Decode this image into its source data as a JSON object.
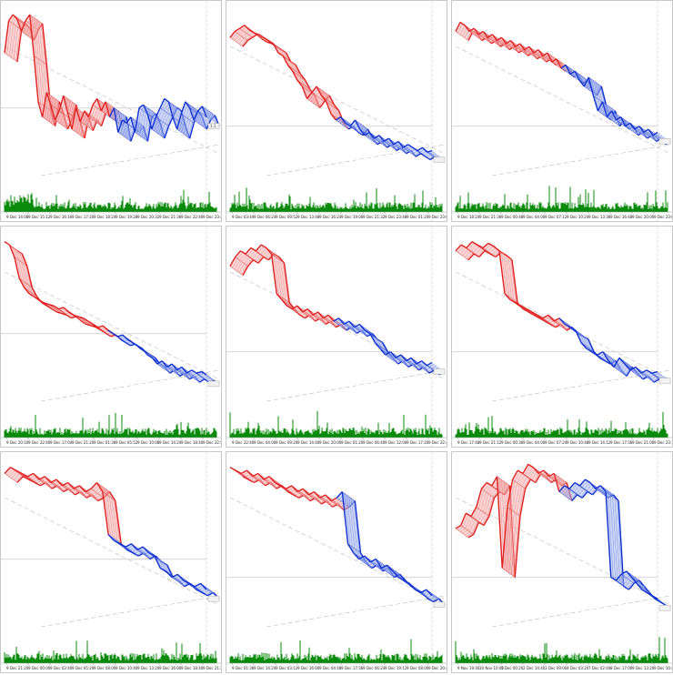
{
  "window": {
    "title": ""
  },
  "colors": {
    "bull": "#e02020",
    "bull_fill": "#f5b5b5",
    "bear": "#1030d0",
    "bear_fill": "#a8b8f0",
    "volume": "#0a8a0a",
    "grid": "#c8c8c8",
    "guide": "#bcbcbc"
  },
  "panels": [
    {
      "id": "p1",
      "price_tag": "1.1",
      "time_labels": [
        "9 Dec 14:08",
        "9 Dec 15:12",
        "9 Dec 16:16",
        "9 Dec 17:20",
        "9 Dec 18:24",
        "9 Dec 19:28",
        "9 Dec 20:32",
        "9 Dec 21:36",
        "9 Dec 22:40",
        "9 Dec 23:44"
      ],
      "chart_data": {
        "type": "line",
        "series": [
          {
            "values": [
              0.72,
              0.93,
              0.97,
              0.94,
              0.86,
              0.93,
              0.97,
              0.7,
              0.4,
              0.3,
              0.46,
              0.38,
              0.28,
              0.34,
              0.44,
              0.33,
              0.22,
              0.36,
              0.27,
              0.34,
              0.3,
              0.38,
              0.42,
              0.34,
              0.4,
              0.3,
              0.36,
              0.2,
              0.28,
              0.26,
              0.3,
              0.2,
              0.36,
              0.38,
              0.32,
              0.22,
              0.3,
              0.36,
              0.42,
              0.4,
              0.3,
              0.22,
              0.32,
              0.4,
              0.36,
              0.28,
              0.34,
              0.37,
              0.3
            ]
          }
        ]
      }
    },
    {
      "id": "p2",
      "price_tag": "",
      "time_labels": [
        "9 Dec 03:44",
        "9 Dec 06:24",
        "9 Dec 09:52",
        "9 Dec 13:48",
        "9 Dec 16:24",
        "9 Dec 19:06",
        "9 Dec 21:32",
        "9 Dec 23:48",
        "9 Dec 01:20",
        "9 Dec 23:09"
      ],
      "chart_data": {
        "type": "line",
        "series": [
          {
            "values": [
              0.82,
              0.86,
              0.88,
              0.9,
              0.87,
              0.85,
              0.84,
              0.82,
              0.8,
              0.78,
              0.72,
              0.7,
              0.64,
              0.6,
              0.54,
              0.5,
              0.42,
              0.46,
              0.5,
              0.44,
              0.4,
              0.32,
              0.28,
              0.3,
              0.26,
              0.24,
              0.28,
              0.22,
              0.18,
              0.2,
              0.16,
              0.18,
              0.14,
              0.16,
              0.12,
              0.14,
              0.1,
              0.12,
              0.1,
              0.08,
              0.1,
              0.07,
              0.08
            ]
          }
        ]
      }
    },
    {
      "id": "p3",
      "price_tag": "",
      "time_labels": [
        "9 Dec 18:24",
        "9 Dec 21:36",
        "9 Dec 00:48",
        "9 Dec 04:00",
        "9 Dec 07:12",
        "9 Dec 10:24",
        "9 Dec 13:36",
        "9 Dec 16:48",
        "9 Dec 20:00",
        "9 Dec 23:02"
      ],
      "chart_data": {
        "type": "line",
        "series": [
          {
            "values": [
              0.86,
              0.92,
              0.9,
              0.86,
              0.88,
              0.84,
              0.86,
              0.82,
              0.84,
              0.8,
              0.82,
              0.78,
              0.8,
              0.76,
              0.78,
              0.74,
              0.76,
              0.72,
              0.74,
              0.7,
              0.72,
              0.66,
              0.68,
              0.62,
              0.64,
              0.58,
              0.6,
              0.54,
              0.5,
              0.56,
              0.44,
              0.34,
              0.4,
              0.3,
              0.34,
              0.28,
              0.3,
              0.24,
              0.26,
              0.22,
              0.24,
              0.2,
              0.22,
              0.18,
              0.2
            ]
          }
        ]
      }
    },
    {
      "id": "p4",
      "price_tag": "",
      "time_labels": [
        "9 Dec 20:10",
        "9 Dec 22:40",
        "9 Dec 17:04",
        "9 Dec 21:20",
        "9 Dec 01:36",
        "9 Dec 05:52",
        "9 Dec 10:08",
        "9 Dec 14:24",
        "9 Dec 18:40",
        "9 Dec 22:56"
      ],
      "chart_data": {
        "type": "line",
        "series": [
          {
            "values": [
              0.96,
              0.94,
              0.86,
              0.72,
              0.66,
              0.62,
              0.6,
              0.58,
              0.56,
              0.55,
              0.54,
              0.52,
              0.53,
              0.5,
              0.48,
              0.47,
              0.46,
              0.44,
              0.42,
              0.4,
              0.41,
              0.38,
              0.36,
              0.34,
              0.35,
              0.32,
              0.3,
              0.28,
              0.26,
              0.22,
              0.2,
              0.16,
              0.18,
              0.14,
              0.16,
              0.12,
              0.14,
              0.1,
              0.12,
              0.1,
              0.11,
              0.09
            ]
          }
        ]
      }
    },
    {
      "id": "p5",
      "price_tag": "",
      "time_labels": [
        "9 Dec 22:40",
        "9 Dec 04:00",
        "9 Dec 09:20",
        "9 Dec 14:40",
        "9 Dec 20:00",
        "9 Dec 01:20",
        "9 Dec 06:40",
        "9 Dec 12:00",
        "9 Dec 17:20",
        "9 Dec 22:40"
      ],
      "chart_data": {
        "type": "line",
        "series": [
          {
            "values": [
              0.8,
              0.86,
              0.9,
              0.88,
              0.92,
              0.9,
              0.94,
              0.92,
              0.88,
              0.62,
              0.58,
              0.54,
              0.52,
              0.54,
              0.5,
              0.52,
              0.48,
              0.5,
              0.46,
              0.48,
              0.44,
              0.46,
              0.42,
              0.44,
              0.4,
              0.42,
              0.38,
              0.36,
              0.3,
              0.26,
              0.22,
              0.24,
              0.2,
              0.22,
              0.18,
              0.2,
              0.16,
              0.18,
              0.15,
              0.17
            ]
          }
        ]
      }
    },
    {
      "id": "p6",
      "price_tag": "",
      "time_labels": [
        "9 Dec 17:48",
        "9 Dec 21:12",
        "9 Dec 00:36",
        "9 Dec 04:00",
        "9 Dec 07:24",
        "9 Dec 10:48",
        "9 Dec 14:12",
        "9 Dec 17:36",
        "9 Dec 21:00",
        "9 Dec 23:18"
      ],
      "chart_data": {
        "type": "line",
        "series": [
          {
            "values": [
              0.9,
              0.94,
              0.92,
              0.96,
              0.94,
              0.92,
              0.95,
              0.93,
              0.9,
              0.62,
              0.58,
              0.56,
              0.54,
              0.52,
              0.5,
              0.48,
              0.46,
              0.48,
              0.44,
              0.46,
              0.42,
              0.4,
              0.38,
              0.3,
              0.26,
              0.24,
              0.22,
              0.24,
              0.18,
              0.14,
              0.2,
              0.16,
              0.12,
              0.14,
              0.1,
              0.12,
              0.1,
              0.11
            ]
          }
        ]
      }
    },
    {
      "id": "p7",
      "price_tag": "",
      "time_labels": [
        "9 Dec 21:20",
        "9 Dec 00:00",
        "9 Dec 02:40",
        "9 Dec 05:20",
        "9 Dec 08:00",
        "9 Dec 10:40",
        "9 Dec 13:20",
        "9 Dec 16:00",
        "9 Dec 18:40",
        "9 Dec 21:20"
      ],
      "chart_data": {
        "type": "line",
        "series": [
          {
            "values": [
              0.92,
              0.96,
              0.94,
              0.92,
              0.9,
              0.92,
              0.88,
              0.9,
              0.86,
              0.88,
              0.84,
              0.86,
              0.82,
              0.84,
              0.8,
              0.82,
              0.86,
              0.8,
              0.52,
              0.48,
              0.46,
              0.44,
              0.46,
              0.42,
              0.44,
              0.4,
              0.38,
              0.3,
              0.28,
              0.24,
              0.26,
              0.22,
              0.2,
              0.18,
              0.2,
              0.16
            ]
          }
        ]
      }
    },
    {
      "id": "p8",
      "price_tag": "",
      "time_labels": [
        "9 Dec 01:36",
        "9 Dec 14:24",
        "9 Dec 03:12",
        "9 Dec 16:00",
        "9 Dec 04:48",
        "9 Dec 17:36",
        "9 Dec 06:24",
        "9 Dec 19:12",
        "9 Dec 08:00",
        "9 Dec 20:48"
      ],
      "chart_data": {
        "type": "line",
        "series": [
          {
            "values": [
              0.96,
              0.94,
              0.92,
              0.94,
              0.9,
              0.92,
              0.88,
              0.9,
              0.86,
              0.84,
              0.82,
              0.84,
              0.8,
              0.82,
              0.78,
              0.8,
              0.76,
              0.78,
              0.74,
              0.76,
              0.8,
              0.46,
              0.4,
              0.36,
              0.38,
              0.34,
              0.36,
              0.3,
              0.32,
              0.28,
              0.24,
              0.22,
              0.2,
              0.16,
              0.14,
              0.16,
              0.12
            ]
          }
        ]
      }
    },
    {
      "id": "p9",
      "price_tag": "",
      "time_labels": [
        "9 Nov 19:40",
        "30 Nov 10:00",
        "1 Dec 00:20",
        "2 Dec 14:40",
        "3 Dec 09:00",
        "4 Dec 03:20",
        "7 Dec 02:40",
        "8 Dec 17:00",
        "9 Dec 13:20",
        "9 Dec 10:40"
      ],
      "chart_data": {
        "type": "line",
        "series": [
          {
            "values": [
              0.56,
              0.58,
              0.66,
              0.64,
              0.7,
              0.82,
              0.86,
              0.84,
              0.9,
              0.3,
              0.7,
              0.88,
              0.94,
              0.92,
              0.98,
              0.96,
              0.92,
              0.94,
              0.9,
              0.92,
              0.8,
              0.84,
              0.82,
              0.86,
              0.84,
              0.88,
              0.86,
              0.82,
              0.84,
              0.8,
              0.24,
              0.22,
              0.26,
              0.28,
              0.24,
              0.2,
              0.16,
              0.14,
              0.12,
              0.1
            ]
          }
        ]
      }
    }
  ]
}
